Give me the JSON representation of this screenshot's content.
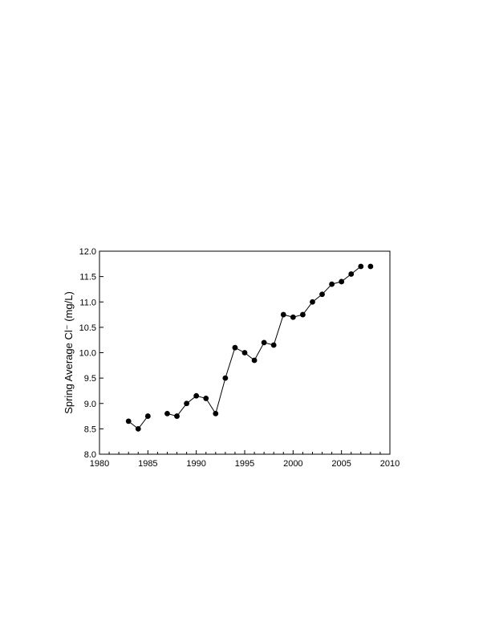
{
  "chart_data": {
    "type": "line",
    "title": "",
    "xlabel": "",
    "ylabel": "Spring Average Cl⁻ (mg/L)",
    "xlim": [
      1980,
      2010
    ],
    "ylim": [
      8.0,
      12.0
    ],
    "x_ticks": [
      "1980",
      "1985",
      "1990",
      "1995",
      "2000",
      "2005",
      "2010"
    ],
    "y_ticks": [
      "8.0",
      "8.5",
      "9.0",
      "9.5",
      "10.0",
      "10.5",
      "11.0",
      "11.5",
      "12.0"
    ],
    "x_minor_step": 1,
    "grid": false,
    "marker": "filled-circle",
    "color": "#000000",
    "series": [
      {
        "points": [
          [
            1983,
            8.65
          ],
          [
            1984,
            8.5
          ],
          [
            1985,
            8.75
          ],
          [
            1987,
            8.8
          ],
          [
            1988,
            8.75
          ],
          [
            1989,
            9.0
          ],
          [
            1990,
            9.15
          ],
          [
            1991,
            9.1
          ],
          [
            1992,
            8.8
          ],
          [
            1993,
            9.5
          ],
          [
            1994,
            10.1
          ],
          [
            1995,
            10.0
          ],
          [
            1996,
            9.85
          ],
          [
            1997,
            10.2
          ],
          [
            1998,
            10.15
          ],
          [
            1999,
            10.75
          ],
          [
            2000,
            10.7
          ],
          [
            2001,
            10.75
          ],
          [
            2002,
            11.0
          ],
          [
            2003,
            11.15
          ],
          [
            2004,
            11.35
          ],
          [
            2005,
            11.4
          ],
          [
            2006,
            11.55
          ],
          [
            2007,
            11.7
          ],
          [
            2008,
            11.7
          ]
        ],
        "line_segments": [
          [
            1983,
            1985
          ],
          [
            1987,
            2007
          ]
        ]
      }
    ]
  }
}
